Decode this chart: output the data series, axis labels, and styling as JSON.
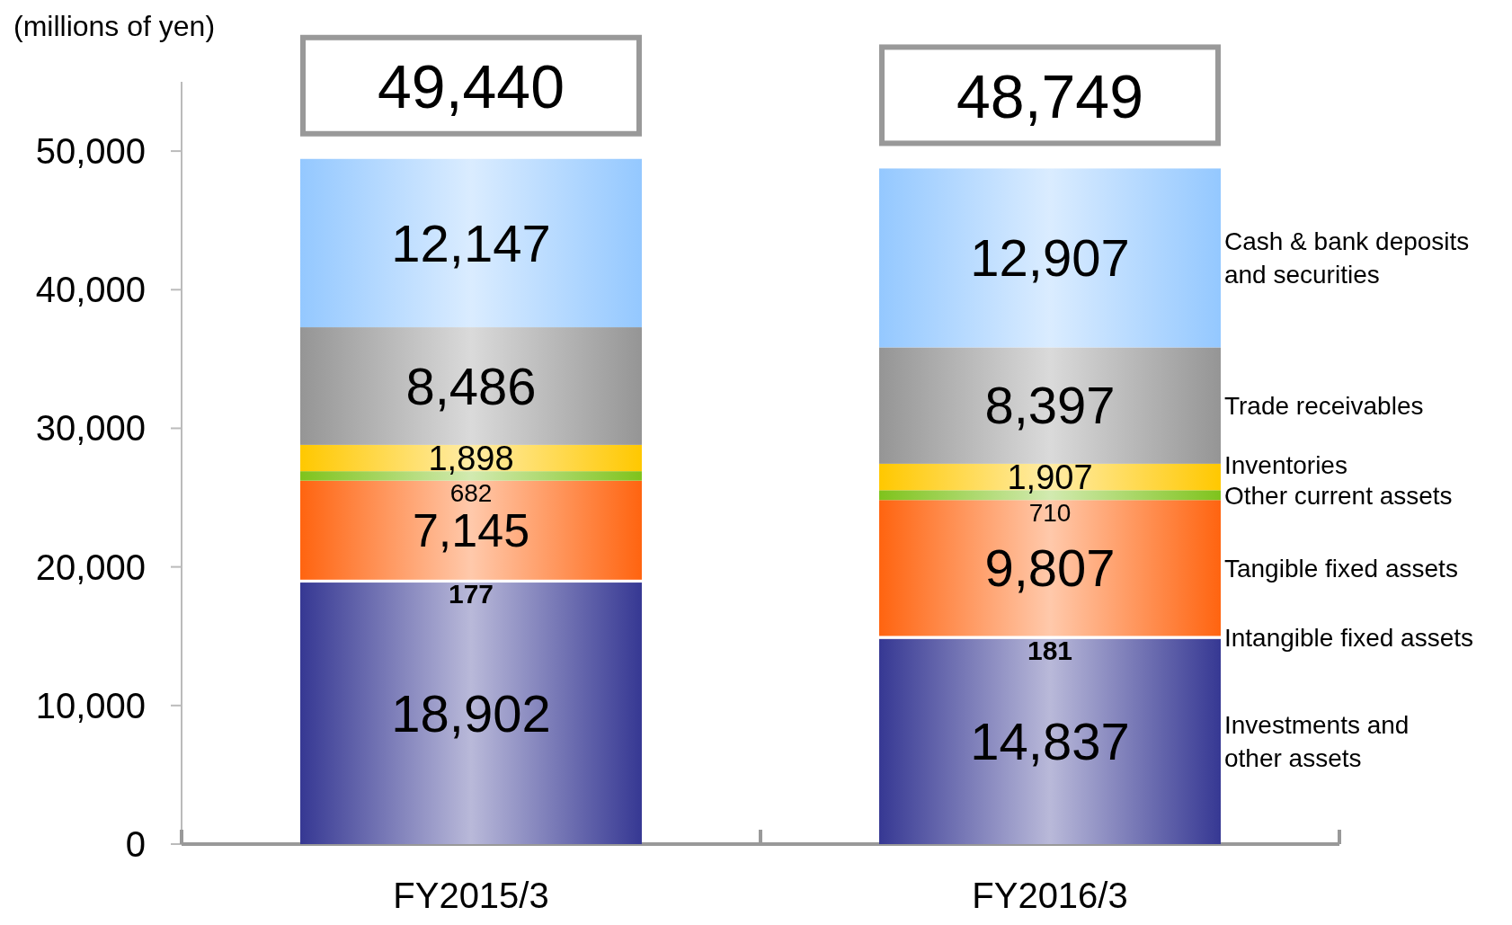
{
  "chart_data": {
    "type": "bar",
    "stacked": true,
    "ylabel": "(millions of yen)",
    "categories": [
      "FY2015/3",
      "FY2016/3"
    ],
    "ylim": [
      0,
      55000
    ],
    "yticks": [
      {
        "value": 0,
        "label": "0"
      },
      {
        "value": 10000,
        "label": "10,000"
      },
      {
        "value": 20000,
        "label": "20,000"
      },
      {
        "value": 30000,
        "label": "30,000"
      },
      {
        "value": 40000,
        "label": "40,000"
      },
      {
        "value": 50000,
        "label": "50,000"
      }
    ],
    "grid": false,
    "legend": "right",
    "totals": [
      "49,440",
      "48,749"
    ],
    "series": [
      {
        "name": "Investments and\nother assets",
        "color": "#363893",
        "values": [
          18902,
          14837
        ],
        "value_labels": [
          "18,902",
          "14,837"
        ]
      },
      {
        "name": "Intangible fixed assets",
        "color": "#ffffff",
        "values": [
          177,
          181
        ],
        "value_labels": [
          "177",
          "181"
        ]
      },
      {
        "name": "Tangible fixed assets",
        "color": "#ff6410",
        "values": [
          7145,
          9807
        ],
        "value_labels": [
          "7,145",
          "9,807"
        ]
      },
      {
        "name": "Other current assets",
        "color": "#7fc31c",
        "values": [
          682,
          710
        ],
        "value_labels": [
          "682",
          "710"
        ]
      },
      {
        "name": "Inventories",
        "color": "#ffc800",
        "values": [
          1898,
          1907
        ],
        "value_labels": [
          "1,898",
          "1,907"
        ]
      },
      {
        "name": "Trade receivables",
        "color": "#959595",
        "values": [
          8486,
          8397
        ],
        "value_labels": [
          "8,486",
          "8,397"
        ]
      },
      {
        "name": "Cash & bank deposits\nand securities",
        "color": "#94c8ff",
        "values": [
          12147,
          12907
        ],
        "value_labels": [
          "12,147",
          "12,907"
        ]
      }
    ]
  }
}
